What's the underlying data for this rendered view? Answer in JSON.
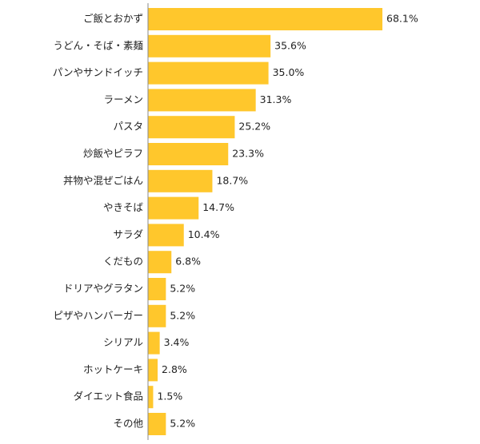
{
  "chart_data": {
    "type": "bar",
    "orientation": "horizontal",
    "categories": [
      "ご飯とおかず",
      "うどん・そば・素麺",
      "パンやサンドイッチ",
      "ラーメン",
      "パスタ",
      "炒飯やピラフ",
      "丼物や混ぜごはん",
      "やきそば",
      "サラダ",
      "くだもの",
      "ドリアやグラタン",
      "ピザやハンバーガー",
      "シリアル",
      "ホットケーキ",
      "ダイエット食品",
      "その他"
    ],
    "values": [
      68.1,
      35.6,
      35.0,
      31.3,
      25.2,
      23.3,
      18.7,
      14.7,
      10.4,
      6.8,
      5.2,
      5.2,
      3.4,
      2.8,
      1.5,
      5.2
    ],
    "value_labels": [
      "68.1%",
      "35.6%",
      "35.0%",
      "31.3%",
      "25.2%",
      "23.3%",
      "18.7%",
      "14.7%",
      "10.4%",
      "6.8%",
      "5.2%",
      "5.2%",
      "3.4%",
      "2.8%",
      "1.5%",
      "5.2%"
    ],
    "xlim": [
      0,
      70
    ],
    "grid": false,
    "bar_color": "#FFC72C",
    "axis_color": "#888888"
  }
}
